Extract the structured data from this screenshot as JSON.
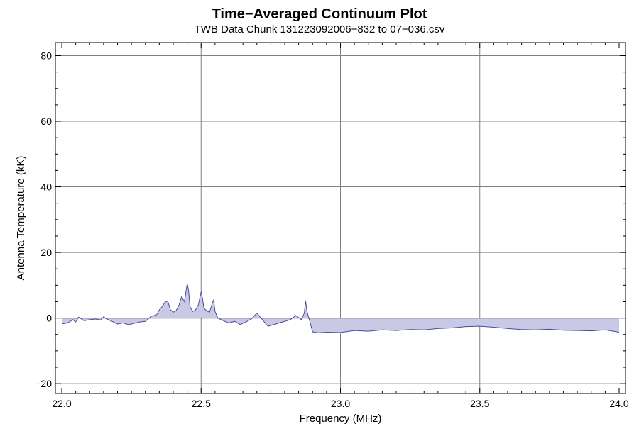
{
  "chart_data": {
    "type": "area",
    "title": "Time−Averaged Continuum Plot",
    "subtitle": "TWB Data Chunk 131223092006−832 to 07−036.csv",
    "xlabel": "Frequency (MHz)",
    "ylabel": "Antenna Temperature (kK)",
    "xlim": [
      22.0,
      24.0
    ],
    "ylim": [
      -23,
      84
    ],
    "xticks": [
      22.0,
      22.5,
      23.0,
      23.5,
      24.0
    ],
    "xtick_labels": [
      "22.0",
      "22.5",
      "23.0",
      "23.5",
      "24.0"
    ],
    "yticks": [
      -20,
      0,
      20,
      40,
      60,
      80
    ],
    "ytick_labels": [
      "−20",
      "0",
      "20",
      "40",
      "60",
      "80"
    ],
    "grid": true,
    "baseline": 0,
    "series": [
      {
        "line_color": "#4a4a9e",
        "fill_color": "#c9c9e6",
        "x": [
          22.0,
          22.02,
          22.04,
          22.05,
          22.06,
          22.08,
          22.1,
          22.12,
          22.14,
          22.15,
          22.16,
          22.18,
          22.2,
          22.22,
          22.24,
          22.26,
          22.28,
          22.3,
          22.32,
          22.34,
          22.35,
          22.36,
          22.37,
          22.38,
          22.39,
          22.4,
          22.41,
          22.42,
          22.43,
          22.44,
          22.45,
          22.455,
          22.46,
          22.47,
          22.48,
          22.49,
          22.5,
          22.505,
          22.51,
          22.52,
          22.53,
          22.54,
          22.545,
          22.55,
          22.56,
          22.58,
          22.6,
          22.62,
          22.64,
          22.66,
          22.68,
          22.7,
          22.72,
          22.74,
          22.76,
          22.78,
          22.8,
          22.82,
          22.84,
          22.86,
          22.87,
          22.875,
          22.88,
          22.89,
          22.9,
          22.92,
          22.95,
          23.0,
          23.05,
          23.1,
          23.15,
          23.2,
          23.25,
          23.3,
          23.35,
          23.4,
          23.45,
          23.5,
          23.55,
          23.6,
          23.65,
          23.7,
          23.75,
          23.8,
          23.85,
          23.9,
          23.95,
          24.0
        ],
        "y": [
          -1.8,
          -1.5,
          -0.5,
          -1.2,
          0.3,
          -0.8,
          -0.5,
          -0.3,
          -0.6,
          0.4,
          -0.2,
          -1.0,
          -1.8,
          -1.5,
          -2.0,
          -1.6,
          -1.2,
          -1.0,
          0.5,
          1.0,
          2.5,
          3.5,
          4.8,
          5.2,
          2.5,
          1.8,
          2.2,
          3.8,
          6.5,
          5.0,
          10.5,
          8.5,
          3.5,
          2.0,
          2.5,
          4.0,
          8.0,
          6.0,
          3.0,
          2.2,
          1.8,
          4.5,
          5.5,
          2.0,
          0.0,
          -0.8,
          -1.5,
          -1.0,
          -2.0,
          -1.2,
          -0.3,
          1.5,
          -0.5,
          -2.5,
          -2.0,
          -1.5,
          -1.0,
          -0.5,
          0.8,
          -0.5,
          1.5,
          5.2,
          2.0,
          -1.0,
          -4.2,
          -4.5,
          -4.3,
          -4.4,
          -3.8,
          -4.0,
          -3.6,
          -3.8,
          -3.5,
          -3.6,
          -3.2,
          -3.0,
          -2.6,
          -2.5,
          -2.8,
          -3.2,
          -3.5,
          -3.6,
          -3.4,
          -3.7,
          -3.8,
          -3.9,
          -3.6,
          -4.3
        ]
      }
    ]
  }
}
